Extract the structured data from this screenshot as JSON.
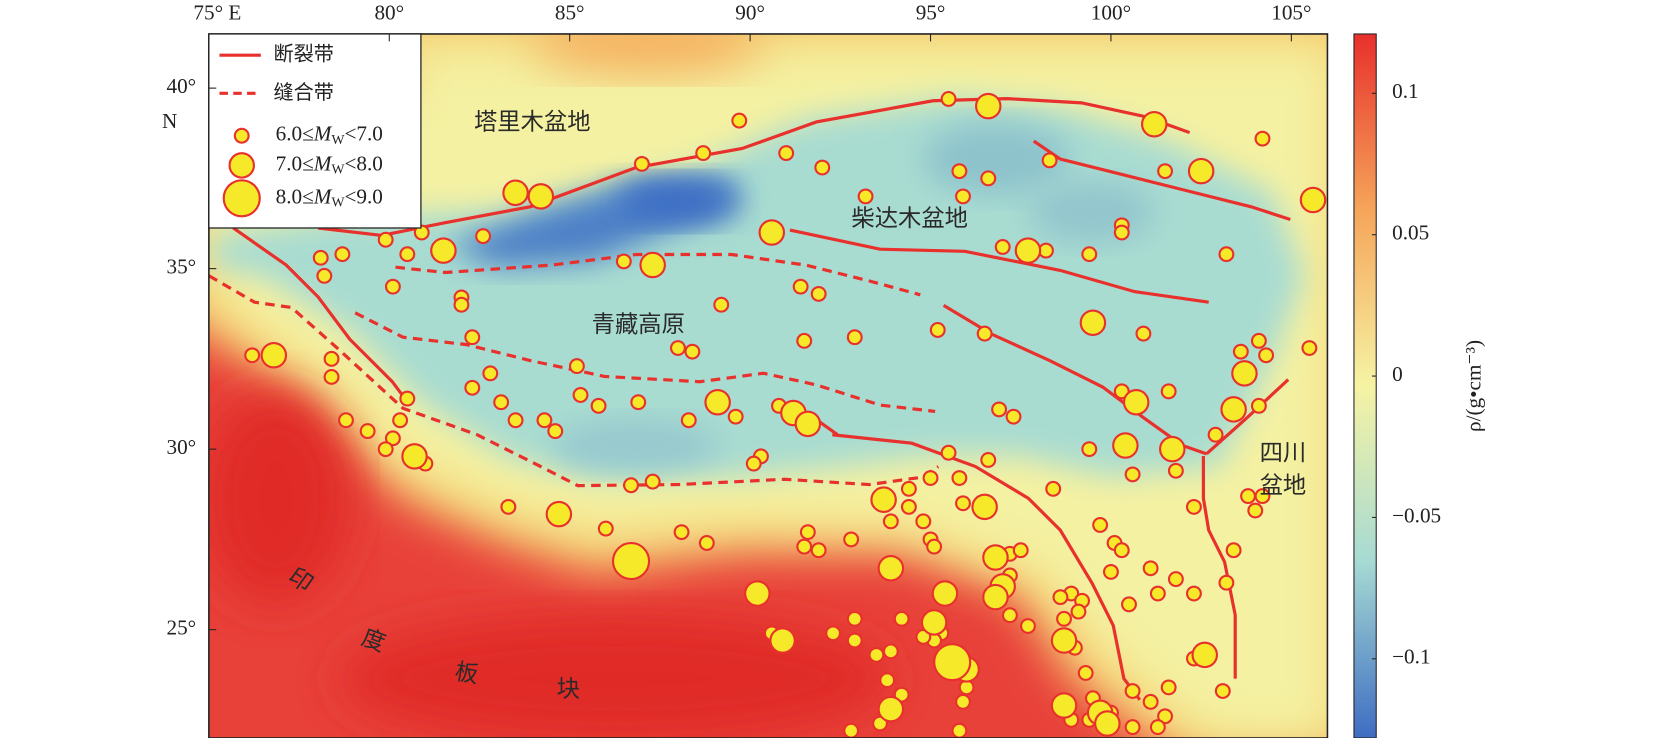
{
  "chart_data": {
    "type": "map",
    "xlim": [
      75,
      106
    ],
    "ylim": [
      22,
      41.5
    ],
    "xticks": [
      {
        "value": 75,
        "label": "75° E"
      },
      {
        "value": 80,
        "label": "80°"
      },
      {
        "value": 85,
        "label": "85°"
      },
      {
        "value": 90,
        "label": "90°"
      },
      {
        "value": 95,
        "label": "95°"
      },
      {
        "value": 100,
        "label": "100°"
      },
      {
        "value": 105,
        "label": "105°"
      }
    ],
    "yticks": [
      {
        "value": 40,
        "label": "40°"
      },
      {
        "value": 35,
        "label": "35°"
      },
      {
        "value": 30,
        "label": "30°"
      },
      {
        "value": 25,
        "label": "25°"
      }
    ],
    "y_hemisphere": "N",
    "labels": {
      "tarim": "塔里木盆地",
      "qaidam": "柴达木盆地",
      "plateau": "青藏高原",
      "sichuan1": "四川",
      "sichuan2": "盆地",
      "india": [
        "印",
        "度",
        "板",
        "块"
      ]
    },
    "lines": [
      {
        "name": "断裂带",
        "color": "#e8302c",
        "style": "solid"
      },
      {
        "name": "缝合带",
        "color": "#e8302c",
        "style": "dashed"
      }
    ],
    "colorbar": {
      "lim": [
        -0.128,
        0.121
      ],
      "ticks": [
        0.1,
        0.05,
        0,
        {
          "value": -0.05,
          "label": "−0.05"
        },
        {
          "value": -0.1,
          "label": "−0.1"
        }
      ],
      "label": "ρ/(g•cm⁻³)",
      "colors": [
        "#3e6cc2",
        "#a6dad3",
        "#f6f3a4",
        "#f5a55a",
        "#e8302c"
      ]
    },
    "series": [
      {
        "name": {
          "pre": "6.0≤",
          "m": "M",
          "sub": "W",
          "post": "<7.0"
        },
        "color": "#f5e92a",
        "edgecolor": "#e8302c",
        "x": [
          89.7,
          95.5,
          104.2,
          91.0,
          88.7,
          87.0,
          92.0,
          98.3,
          95.8,
          96.6,
          101.5,
          93.2,
          95.9,
          100.3,
          100.3,
          80.9,
          79.9,
          82.6,
          80.5,
          78.1,
          78.7,
          86.5,
          97.0,
          98.2,
          99.4,
          103.2,
          78.2,
          80.1,
          82.0,
          82.0,
          91.4,
          91.9,
          89.2,
          95.2,
          96.5,
          100.9,
          82.3,
          91.5,
          92.9,
          104.1,
          104.3,
          103.6,
          105.5,
          76.2,
          78.4,
          78.4,
          85.2,
          82.8,
          88.0,
          88.4,
          101.6,
          82.3,
          80.5,
          83.1,
          85.3,
          85.8,
          86.9,
          90.8,
          104.1,
          100.3,
          83.5,
          84.3,
          84.6,
          88.3,
          89.6,
          96.9,
          97.3,
          78.8,
          79.4,
          80.3,
          80.1,
          79.9,
          102.9,
          99.4,
          90.3,
          90.1,
          95.5,
          96.6,
          81.0,
          100.6,
          101.8,
          95.0,
          95.8,
          86.7,
          87.3,
          94.4,
          95.9,
          98.4,
          83.3,
          93.9,
          94.4,
          94.8,
          102.3,
          103.8,
          104.2,
          104.0,
          99.7,
          86.0,
          88.1,
          88.8,
          91.6,
          91.5,
          91.9,
          95.0,
          95.1,
          92.8,
          100.1,
          100.3,
          97.2,
          97.5,
          103.4,
          100.0,
          101.1,
          101.8,
          102.3,
          97.2,
          103.2,
          98.9,
          98.6,
          99.2,
          101.3,
          100.5,
          92.9,
          94.2,
          97.2,
          97.7,
          95.3,
          95.1,
          98.7,
          99.1,
          90.6,
          92.3,
          92.9,
          93.9,
          99.0,
          94.8,
          93.5,
          95.9,
          102.3,
          99.3,
          93.8,
          96.0,
          101.6,
          103.1,
          100.6,
          101.1,
          99.5,
          99.4,
          100.0,
          101.5,
          94.2,
          95.9,
          98.9,
          93.6,
          92.8,
          95.8,
          101.3,
          100.6
        ],
        "y": [
          39.1,
          39.7,
          38.6,
          38.2,
          38.2,
          37.9,
          37.8,
          38.0,
          37.7,
          37.5,
          37.7,
          37.0,
          37.0,
          36.2,
          36.0,
          36.0,
          35.8,
          35.9,
          35.4,
          35.3,
          35.4,
          35.2,
          35.6,
          35.5,
          35.4,
          35.4,
          34.8,
          34.5,
          34.2,
          34.0,
          34.5,
          34.3,
          34.0,
          33.3,
          33.2,
          33.2,
          33.1,
          33.0,
          33.1,
          33.0,
          32.6,
          32.7,
          32.8,
          32.6,
          32.5,
          32.0,
          32.3,
          32.1,
          32.8,
          32.7,
          31.6,
          31.7,
          31.4,
          31.3,
          31.5,
          31.2,
          31.3,
          31.2,
          31.2,
          31.6,
          30.8,
          30.8,
          30.5,
          30.8,
          30.9,
          31.1,
          30.9,
          30.8,
          30.5,
          30.8,
          30.3,
          30.0,
          30.4,
          30.0,
          29.8,
          29.6,
          29.9,
          29.7,
          29.6,
          29.3,
          29.4,
          29.2,
          29.2,
          29.0,
          29.1,
          28.9,
          28.5,
          28.9,
          28.4,
          28.0,
          28.4,
          28.0,
          28.4,
          28.7,
          28.7,
          28.3,
          27.9,
          27.8,
          27.7,
          27.4,
          27.7,
          27.3,
          27.2,
          27.5,
          27.3,
          27.5,
          27.4,
          27.2,
          27.1,
          27.2,
          27.2,
          26.6,
          26.7,
          26.4,
          26.0,
          26.5,
          26.3,
          26.0,
          25.9,
          25.8,
          26.0,
          25.7,
          25.3,
          25.3,
          25.4,
          25.1,
          24.9,
          24.7,
          25.3,
          25.5,
          24.9,
          24.9,
          24.7,
          24.4,
          24.5,
          24.8,
          24.3,
          24.2,
          24.2,
          23.8,
          23.6,
          23.4,
          23.4,
          23.3,
          23.3,
          23.0,
          23.1,
          22.5,
          22.7,
          22.6,
          23.2,
          23.0,
          22.5,
          22.4,
          22.2,
          22.2,
          22.3,
          22.3
        ]
      },
      {
        "name": {
          "pre": "7.0≤",
          "m": "M",
          "sub": "W",
          "post": "<8.0"
        },
        "color": "#f5e92a",
        "edgecolor": "#e8302c",
        "x": [
          96.6,
          101.2,
          102.5,
          105.6,
          83.5,
          84.2,
          90.6,
          81.5,
          87.3,
          97.7,
          99.5,
          76.8,
          103.7,
          89.1,
          91.2,
          91.6,
          100.7,
          103.4,
          100.4,
          101.7,
          80.7,
          93.7,
          96.5,
          84.7,
          96.8,
          93.9,
          97.0,
          96.8,
          95.4,
          90.2,
          95.1,
          90.9,
          98.7,
          102.6,
          96.0,
          98.7,
          99.7,
          99.9,
          93.9
        ],
        "y": [
          39.5,
          39.0,
          37.7,
          36.9,
          37.1,
          37.0,
          36.0,
          35.5,
          35.1,
          35.5,
          33.5,
          32.6,
          32.1,
          31.3,
          31.0,
          30.7,
          31.3,
          31.1,
          30.1,
          30.0,
          29.8,
          28.6,
          28.4,
          28.2,
          27.0,
          26.7,
          26.2,
          25.9,
          26.0,
          26.0,
          25.2,
          24.7,
          24.7,
          24.3,
          23.9,
          22.9,
          22.7,
          22.4,
          22.8
        ]
      },
      {
        "name": {
          "pre": "8.0≤",
          "m": "M",
          "sub": "W",
          "post": "<9.0"
        },
        "color": "#f5e92a",
        "edgecolor": "#e8302c",
        "x": [
          86.7,
          95.6
        ],
        "y": [
          26.9,
          24.1
        ]
      }
    ]
  }
}
